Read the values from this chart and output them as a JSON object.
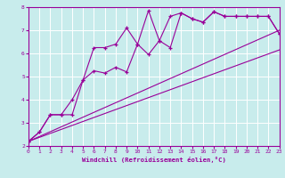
{
  "xlabel": "Windchill (Refroidissement éolien,°C)",
  "bg_color": "#c8ecec",
  "grid_color": "#ffffff",
  "line_color": "#990099",
  "xlim": [
    0,
    23
  ],
  "ylim": [
    2,
    8
  ],
  "xticks": [
    0,
    1,
    2,
    3,
    4,
    5,
    6,
    7,
    8,
    9,
    10,
    11,
    12,
    13,
    14,
    15,
    16,
    17,
    18,
    19,
    20,
    21,
    22,
    23
  ],
  "yticks": [
    2,
    3,
    4,
    5,
    6,
    7,
    8
  ],
  "series1_x": [
    0,
    1,
    2,
    3,
    4,
    5,
    6,
    7,
    8,
    9,
    10,
    11,
    12,
    13,
    14,
    15,
    16,
    17,
    18,
    19,
    20,
    21,
    22,
    23
  ],
  "series1_y": [
    2.2,
    2.6,
    3.35,
    3.35,
    4.0,
    4.85,
    6.25,
    6.25,
    6.4,
    7.1,
    6.4,
    7.85,
    6.55,
    7.6,
    7.75,
    7.5,
    7.35,
    7.8,
    7.6,
    7.6,
    7.6,
    7.6,
    7.6,
    6.85
  ],
  "series2_x": [
    0,
    1,
    2,
    3,
    4,
    5,
    6,
    7,
    8,
    9,
    10,
    11,
    12,
    13,
    14,
    15,
    16,
    17,
    18,
    19,
    20,
    21,
    22,
    23
  ],
  "series2_y": [
    2.2,
    2.6,
    3.35,
    3.35,
    3.35,
    4.85,
    5.25,
    5.15,
    5.4,
    5.2,
    6.4,
    5.95,
    6.55,
    6.25,
    7.75,
    7.5,
    7.35,
    7.8,
    7.6,
    7.6,
    7.6,
    7.6,
    7.6,
    6.85
  ],
  "line1_x": [
    0,
    23
  ],
  "line1_y": [
    2.2,
    7.0
  ],
  "line2_x": [
    0,
    23
  ],
  "line2_y": [
    2.2,
    6.15
  ]
}
